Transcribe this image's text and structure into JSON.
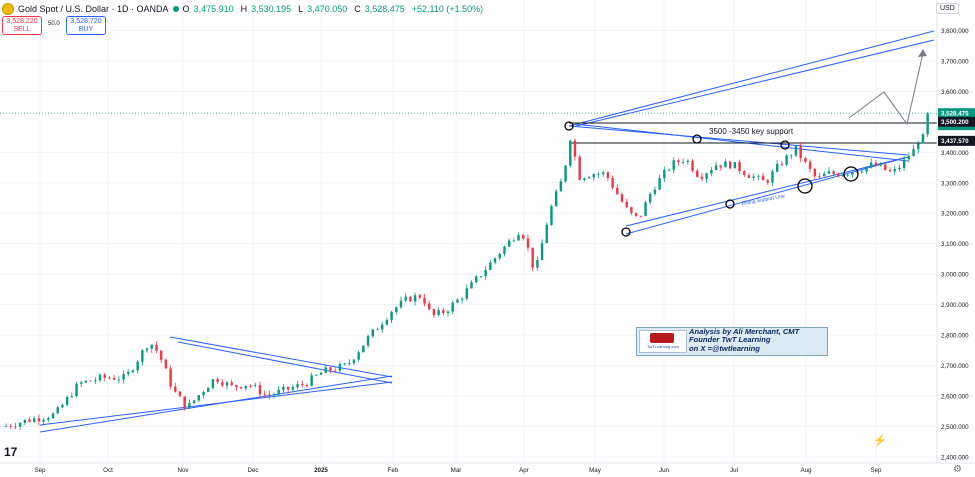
{
  "header": {
    "symbol": "Gold Spot / U.S. Dollar · 1D · OANDA",
    "ohlc": [
      {
        "label": "O",
        "value": "3,475.910"
      },
      {
        "label": "H",
        "value": "3,530.195"
      },
      {
        "label": "L",
        "value": "3,470.050"
      },
      {
        "label": "C",
        "value": "3,528.475"
      }
    ],
    "change": "+52.110 (+1.50%)"
  },
  "trade": {
    "sell_price": "3,528.220",
    "sell_label": "SELL",
    "spread": "50.0",
    "buy_price": "3,528.720",
    "buy_label": "BUY"
  },
  "currency": "USD",
  "colors": {
    "up": "#089981",
    "down": "#f23645",
    "line": "#2962ff",
    "annotation": "#131722"
  },
  "annotations": {
    "support_text": "3500 -3450 key support",
    "rising_support": "Rising Support Line"
  },
  "watermark": {
    "logo_text": "TwTLearning.com",
    "lines": [
      "Analysis by Ali Merchant, CMT",
      "Founder TwT Learning",
      "on X =@twtlearning"
    ]
  },
  "chart_data": {
    "type": "candlestick",
    "ylim": [
      2380,
      3900
    ],
    "yticks": [
      {
        "value": 3800,
        "label": "3,800.000"
      },
      {
        "value": 3700,
        "label": "3,700.000"
      },
      {
        "value": 3600,
        "label": "3,600.000"
      },
      {
        "value": 3400,
        "label": "3,400.000"
      },
      {
        "value": 3300,
        "label": "3,300.000"
      },
      {
        "value": 3200,
        "label": "3,200.000"
      },
      {
        "value": 3100,
        "label": "3,100.000"
      },
      {
        "value": 3000,
        "label": "3,000.000"
      },
      {
        "value": 2900,
        "label": "2,900.000"
      },
      {
        "value": 2800,
        "label": "2,800.000"
      },
      {
        "value": 2700,
        "label": "2,700.000"
      },
      {
        "value": 2600,
        "label": "2,600.000"
      },
      {
        "value": 2500,
        "label": "2,500.000"
      },
      {
        "value": 2400,
        "label": "2,400.000"
      }
    ],
    "price_tags": [
      {
        "value": 3528.475,
        "label": "3,528.475",
        "sub": "02:57:21",
        "kind": "current"
      },
      {
        "value": 3500.2,
        "label": "3,500.200",
        "kind": "level"
      },
      {
        "value": 3437.57,
        "label": "3,437.570",
        "kind": "level"
      }
    ],
    "xticks": [
      "Sep",
      "Oct",
      "Nov",
      "Dec",
      "2025",
      "Feb",
      "Mar",
      "Apr",
      "May",
      "Jun",
      "Jul",
      "Aug",
      "Sep"
    ],
    "anchors": [
      [
        0,
        2500
      ],
      [
        10,
        2520
      ],
      [
        22,
        2540
      ],
      [
        32,
        2640
      ],
      [
        42,
        2660
      ],
      [
        52,
        2660
      ],
      [
        57,
        2720
      ],
      [
        62,
        2780
      ],
      [
        66,
        2740
      ],
      [
        72,
        2620
      ],
      [
        78,
        2560
      ],
      [
        85,
        2620
      ],
      [
        90,
        2660
      ],
      [
        97,
        2630
      ],
      [
        104,
        2640
      ],
      [
        112,
        2600
      ],
      [
        120,
        2620
      ],
      [
        128,
        2640
      ],
      [
        136,
        2680
      ],
      [
        146,
        2700
      ],
      [
        155,
        2790
      ],
      [
        165,
        2880
      ],
      [
        172,
        2920
      ],
      [
        178,
        2930
      ],
      [
        182,
        2860
      ],
      [
        188,
        2880
      ],
      [
        194,
        2920
      ],
      [
        203,
        3000
      ],
      [
        212,
        3080
      ],
      [
        220,
        3150
      ],
      [
        224,
        3060
      ],
      [
        226,
        3000
      ],
      [
        232,
        3200
      ],
      [
        238,
        3320
      ],
      [
        241,
        3450
      ],
      [
        245,
        3320
      ],
      [
        250,
        3330
      ],
      [
        256,
        3330
      ],
      [
        262,
        3250
      ],
      [
        266,
        3200
      ],
      [
        270,
        3180
      ],
      [
        276,
        3280
      ],
      [
        284,
        3360
      ],
      [
        290,
        3380
      ],
      [
        296,
        3320
      ],
      [
        303,
        3360
      ],
      [
        310,
        3360
      ],
      [
        316,
        3330
      ],
      [
        324,
        3300
      ],
      [
        330,
        3360
      ],
      [
        337,
        3410
      ],
      [
        342,
        3350
      ],
      [
        346,
        3310
      ],
      [
        350,
        3330
      ],
      [
        356,
        3330
      ],
      [
        362,
        3340
      ],
      [
        370,
        3360
      ],
      [
        373,
        3350
      ],
      [
        378,
        3330
      ],
      [
        382,
        3360
      ],
      [
        386,
        3400
      ],
      [
        390,
        3440
      ],
      [
        392,
        3476
      ],
      [
        393,
        3528
      ]
    ]
  }
}
